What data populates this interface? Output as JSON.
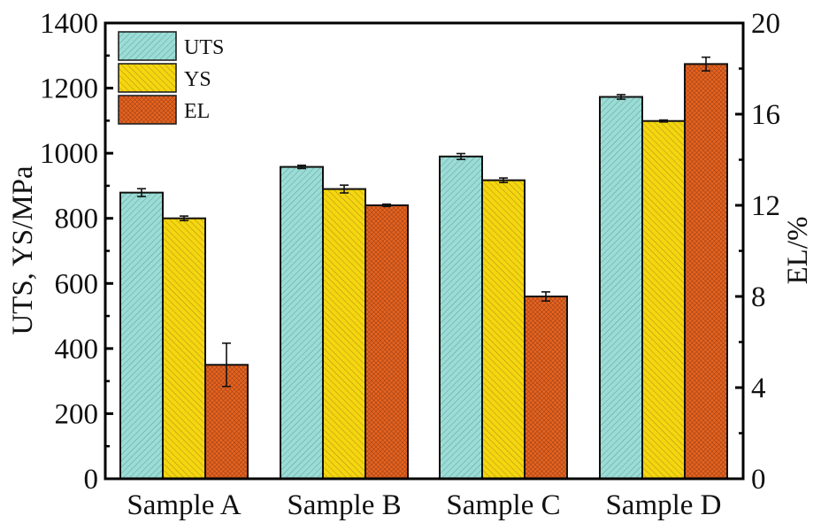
{
  "chart_data": {
    "type": "bar",
    "categories": [
      "Sample A",
      "Sample B",
      "Sample C",
      "Sample D"
    ],
    "series": [
      {
        "name": "UTS",
        "axis": "left",
        "values": [
          879,
          958,
          990,
          1173
        ],
        "errors": [
          12,
          5,
          9,
          7
        ],
        "color": "#9bddd6",
        "hatch": "diag-right"
      },
      {
        "name": "YS",
        "axis": "left",
        "values": [
          800,
          890,
          917,
          1099
        ],
        "errors": [
          7,
          12,
          7,
          3
        ],
        "color": "#f5d60f",
        "hatch": "diag-left"
      },
      {
        "name": "EL",
        "axis": "right",
        "values": [
          5.0,
          12.0,
          8.0,
          18.2
        ],
        "errors": [
          0.95,
          0.05,
          0.2,
          0.3
        ],
        "color": "#e8641e",
        "hatch": "cross"
      }
    ],
    "ylabel": "UTS, YS/MPa",
    "y2label": "EL/%",
    "ylim": [
      0,
      1400
    ],
    "y2lim": [
      0,
      20
    ],
    "yticks": [
      "0",
      "200",
      "400",
      "600",
      "800",
      "1000",
      "1200",
      "1400"
    ],
    "y2ticks": [
      "0",
      "4",
      "8",
      "12",
      "16",
      "20"
    ],
    "legend": {
      "position": "top-left",
      "entries": [
        "UTS",
        "YS",
        "EL"
      ]
    }
  }
}
